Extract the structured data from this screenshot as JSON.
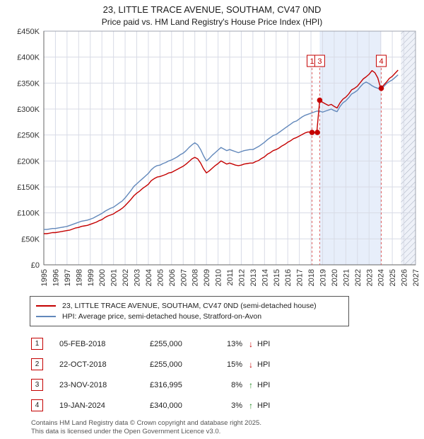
{
  "title": "23, LITTLE TRACE AVENUE, SOUTHAM, CV47 0ND",
  "subtitle": "Price paid vs. HM Land Registry's House Price Index (HPI)",
  "chart_data": {
    "type": "line",
    "x_start": 1995,
    "x_step": 0.25,
    "x_axis": {
      "min": 1995,
      "max": 2027,
      "ticks": [
        "1995",
        "1996",
        "1997",
        "1998",
        "1999",
        "2000",
        "2001",
        "2002",
        "2003",
        "2004",
        "2005",
        "2006",
        "2007",
        "2008",
        "2009",
        "2010",
        "2011",
        "2012",
        "2013",
        "2014",
        "2015",
        "2016",
        "2017",
        "2018",
        "2019",
        "2020",
        "2021",
        "2022",
        "2023",
        "2024",
        "2025",
        "2026",
        "2027"
      ]
    },
    "y_axis": {
      "min": 0,
      "max": 450000,
      "step": 50000,
      "ticks": [
        "£0",
        "£50K",
        "£100K",
        "£150K",
        "£200K",
        "£250K",
        "£300K",
        "£350K",
        "£400K",
        "£450K"
      ]
    },
    "series": [
      {
        "name": "23, LITTLE TRACE AVENUE, SOUTHAM, CV47 0ND (semi-detached house)",
        "color": "#c40000",
        "values": [
          60000,
          60000,
          61000,
          62000,
          62000,
          63000,
          64000,
          65000,
          66000,
          67000,
          69000,
          71000,
          72000,
          74000,
          75000,
          76000,
          78000,
          80000,
          82000,
          85000,
          87000,
          91000,
          94000,
          96000,
          98000,
          102000,
          105000,
          109000,
          114000,
          120000,
          126000,
          133000,
          138000,
          142000,
          147000,
          151000,
          155000,
          162000,
          166000,
          169000,
          170000,
          172000,
          174000,
          177000,
          178000,
          181000,
          184000,
          187000,
          190000,
          194000,
          199000,
          204000,
          207000,
          204000,
          196000,
          185000,
          177000,
          181000,
          186000,
          191000,
          195000,
          200000,
          197000,
          194000,
          196000,
          194000,
          192000,
          191000,
          192000,
          194000,
          195000,
          196000,
          196000,
          199000,
          201000,
          205000,
          208000,
          213000,
          216000,
          220000,
          222000,
          225000,
          229000,
          232000,
          236000,
          239000,
          243000,
          245000,
          248000,
          251000,
          254000,
          256000,
          255000,
          254000,
          255000,
          316995,
          313000,
          310000,
          307000,
          309000,
          305000,
          302000,
          312000,
          319000,
          323000,
          329000,
          337000,
          340000,
          344000,
          351000,
          358000,
          362000,
          367000,
          374000,
          370000,
          360000,
          340000,
          346000,
          352000,
          359000,
          363000,
          369000,
          375000
        ]
      },
      {
        "name": "HPI: Average price, semi-detached house, Stratford-on-Avon",
        "color": "#6288bb",
        "values": [
          68000,
          68000,
          69000,
          70000,
          70000,
          71000,
          72000,
          73000,
          74000,
          76000,
          78000,
          80000,
          82000,
          84000,
          85000,
          86000,
          88000,
          90000,
          93000,
          96000,
          99000,
          103000,
          106000,
          109000,
          111000,
          115000,
          119000,
          123000,
          129000,
          136000,
          143000,
          151000,
          156000,
          161000,
          166000,
          171000,
          176000,
          183000,
          188000,
          191000,
          192000,
          195000,
          197000,
          200000,
          202000,
          205000,
          208000,
          212000,
          215000,
          220000,
          226000,
          231000,
          235000,
          231000,
          222000,
          210000,
          200000,
          205000,
          211000,
          216000,
          221000,
          226000,
          223000,
          220000,
          222000,
          220000,
          218000,
          216000,
          218000,
          220000,
          221000,
          222000,
          222000,
          225000,
          228000,
          232000,
          236000,
          241000,
          245000,
          249000,
          251000,
          255000,
          259000,
          263000,
          267000,
          271000,
          275000,
          277000,
          281000,
          285000,
          288000,
          290000,
          292000,
          294000,
          296000,
          296000,
          294000,
          296000,
          298000,
          300000,
          297000,
          295000,
          305000,
          312000,
          316000,
          322000,
          329000,
          332000,
          336000,
          343000,
          349000,
          352000,
          349000,
          345000,
          342000,
          340000,
          338000,
          343000,
          349000,
          353000,
          356000,
          361000,
          366000
        ]
      }
    ],
    "sales": [
      {
        "label": "1",
        "x": 2018.09,
        "y": 255000,
        "show_line": true
      },
      {
        "label": "2",
        "x": 2018.55,
        "y": 255000,
        "show_line": false
      },
      {
        "label": "3",
        "x": 2018.75,
        "y": 316995,
        "show_line": true
      },
      {
        "label": "4",
        "x": 2024.05,
        "y": 340000,
        "show_line": true
      }
    ],
    "shaded_region": [
      2018.75,
      2024.05
    ],
    "hatched_region": [
      2025.75,
      2027
    ],
    "colors": {
      "grid": "#d8dbe6",
      "border": "#a0a5b0",
      "axis": "#666666",
      "band": "#e7eefa",
      "dashed_line": "#e06666",
      "marker": "#c40000"
    }
  },
  "legend": {
    "items": [
      {
        "label": "23, LITTLE TRACE AVENUE, SOUTHAM, CV47 0ND (semi-detached house)",
        "color": "#c40000"
      },
      {
        "label": "HPI: Average price, semi-detached house, Stratford-on-Avon",
        "color": "#6288bb"
      }
    ]
  },
  "table": {
    "hpi_label": "HPI",
    "rows": [
      {
        "num": "1",
        "date": "05-FEB-2018",
        "price": "£255,000",
        "pct": "13%",
        "arrow": "↓",
        "dir": "down"
      },
      {
        "num": "2",
        "date": "22-OCT-2018",
        "price": "£255,000",
        "pct": "15%",
        "arrow": "↓",
        "dir": "down"
      },
      {
        "num": "3",
        "date": "23-NOV-2018",
        "price": "£316,995",
        "pct": "8%",
        "arrow": "↑",
        "dir": "up"
      },
      {
        "num": "4",
        "date": "19-JAN-2024",
        "price": "£340,000",
        "pct": "3%",
        "arrow": "↑",
        "dir": "up"
      }
    ]
  },
  "footer": {
    "line1": "Contains HM Land Registry data © Crown copyright and database right 2025.",
    "line2": "This data is licensed under the Open Government Licence v3.0."
  }
}
